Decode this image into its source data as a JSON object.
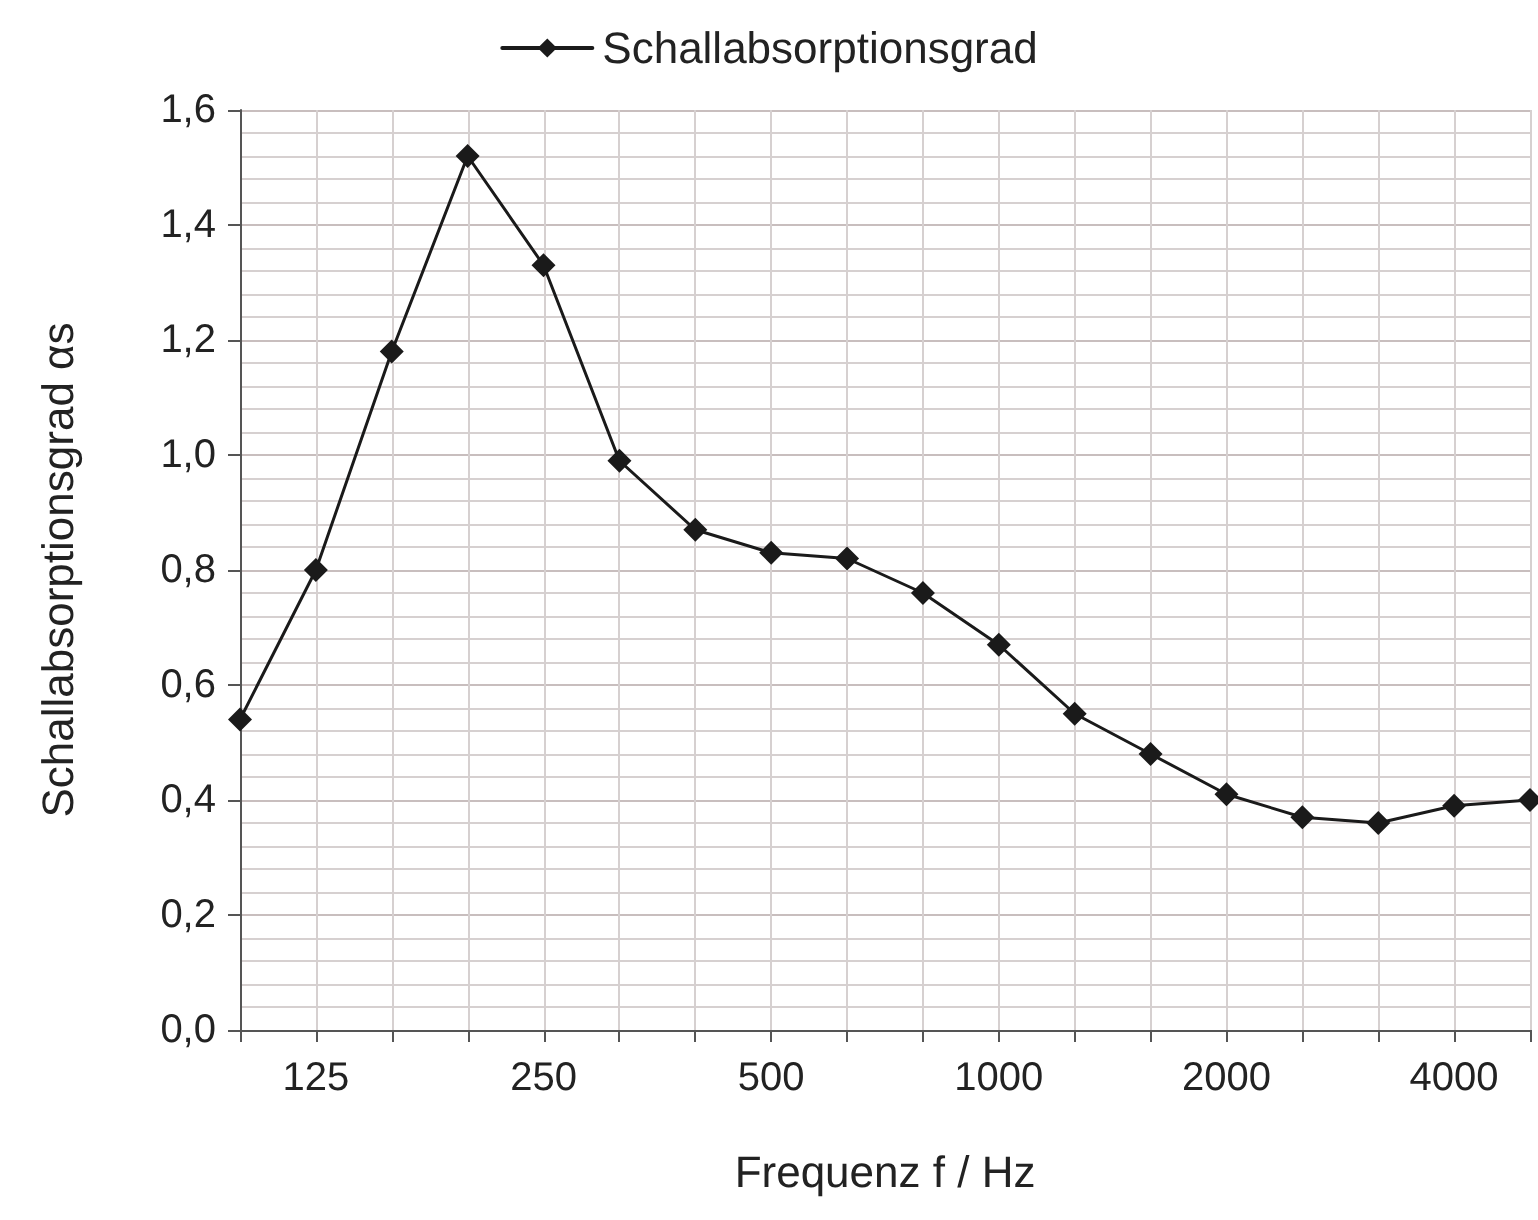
{
  "chart_data": {
    "type": "line",
    "xlabel": "Frequenz f / Hz",
    "ylabel": "Schallabsorptionsgrad αs",
    "categories": [
      null,
      "125",
      null,
      null,
      "250",
      null,
      null,
      "500",
      null,
      null,
      "1000",
      null,
      null,
      "2000",
      null,
      null,
      "4000",
      null
    ],
    "series": [
      {
        "name": "Schallabsorptionsgrad",
        "color": "#1a1a1a",
        "values": [
          0.54,
          0.8,
          1.18,
          1.52,
          1.33,
          0.99,
          0.87,
          0.83,
          0.82,
          0.76,
          0.67,
          0.55,
          0.48,
          0.41,
          0.37,
          0.36,
          0.39,
          0.4
        ]
      }
    ],
    "ylim": [
      0,
      1.6
    ],
    "yticks": [
      {
        "value": 0,
        "label": "0,0"
      },
      {
        "value": 0.2,
        "label": "0,2"
      },
      {
        "value": 0.4,
        "label": "0,4"
      },
      {
        "value": 0.6,
        "label": "0,6"
      },
      {
        "value": 0.8,
        "label": "0,8"
      },
      {
        "value": 1.0,
        "label": "1,0"
      },
      {
        "value": 1.2,
        "label": "1,2"
      },
      {
        "value": 1.4,
        "label": "1,4"
      },
      {
        "value": 1.6,
        "label": "1,6"
      }
    ],
    "grid": true,
    "legend": "top",
    "marker": "diamond",
    "line_style": "solid"
  }
}
